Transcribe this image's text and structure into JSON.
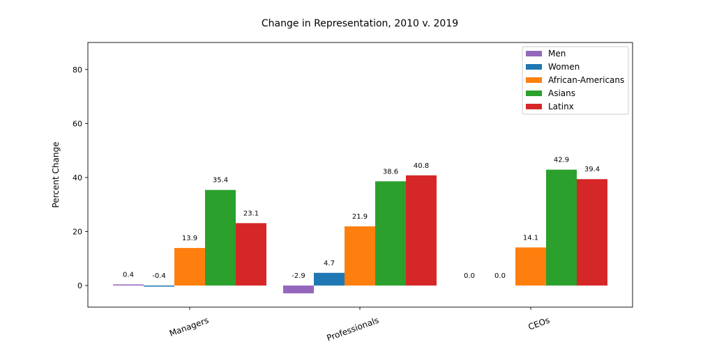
{
  "chart_data": {
    "type": "bar",
    "title": "Change in Representation, 2010 v. 2019",
    "xlabel": "",
    "ylabel": "Percent Change",
    "categories": [
      "Managers",
      "Professionals",
      "CEOs"
    ],
    "ylim": [
      -8,
      90
    ],
    "yticks": [
      0,
      20,
      40,
      60,
      80
    ],
    "grid": false,
    "legend_position": "top-right",
    "series": [
      {
        "name": "Men",
        "color": "#9467bd",
        "values": [
          0.4,
          -2.9,
          0.0
        ],
        "labels": [
          "0.4",
          "-2.9",
          "0.0"
        ]
      },
      {
        "name": "Women",
        "color": "#1f77b4",
        "values": [
          -0.4,
          4.7,
          0.0
        ],
        "labels": [
          "-0.4",
          "4.7",
          "0.0"
        ]
      },
      {
        "name": "African-Americans",
        "color": "#ff7f0e",
        "values": [
          13.9,
          21.9,
          14.1
        ],
        "labels": [
          "13.9",
          "21.9",
          "14.1"
        ]
      },
      {
        "name": "Asians",
        "color": "#2ca02c",
        "values": [
          35.4,
          38.6,
          42.9
        ],
        "labels": [
          "35.4",
          "38.6",
          "42.9"
        ]
      },
      {
        "name": "Latinx",
        "color": "#d62728",
        "values": [
          23.1,
          40.8,
          39.4
        ],
        "labels": [
          "23.1",
          "40.8",
          "39.4"
        ]
      }
    ]
  }
}
